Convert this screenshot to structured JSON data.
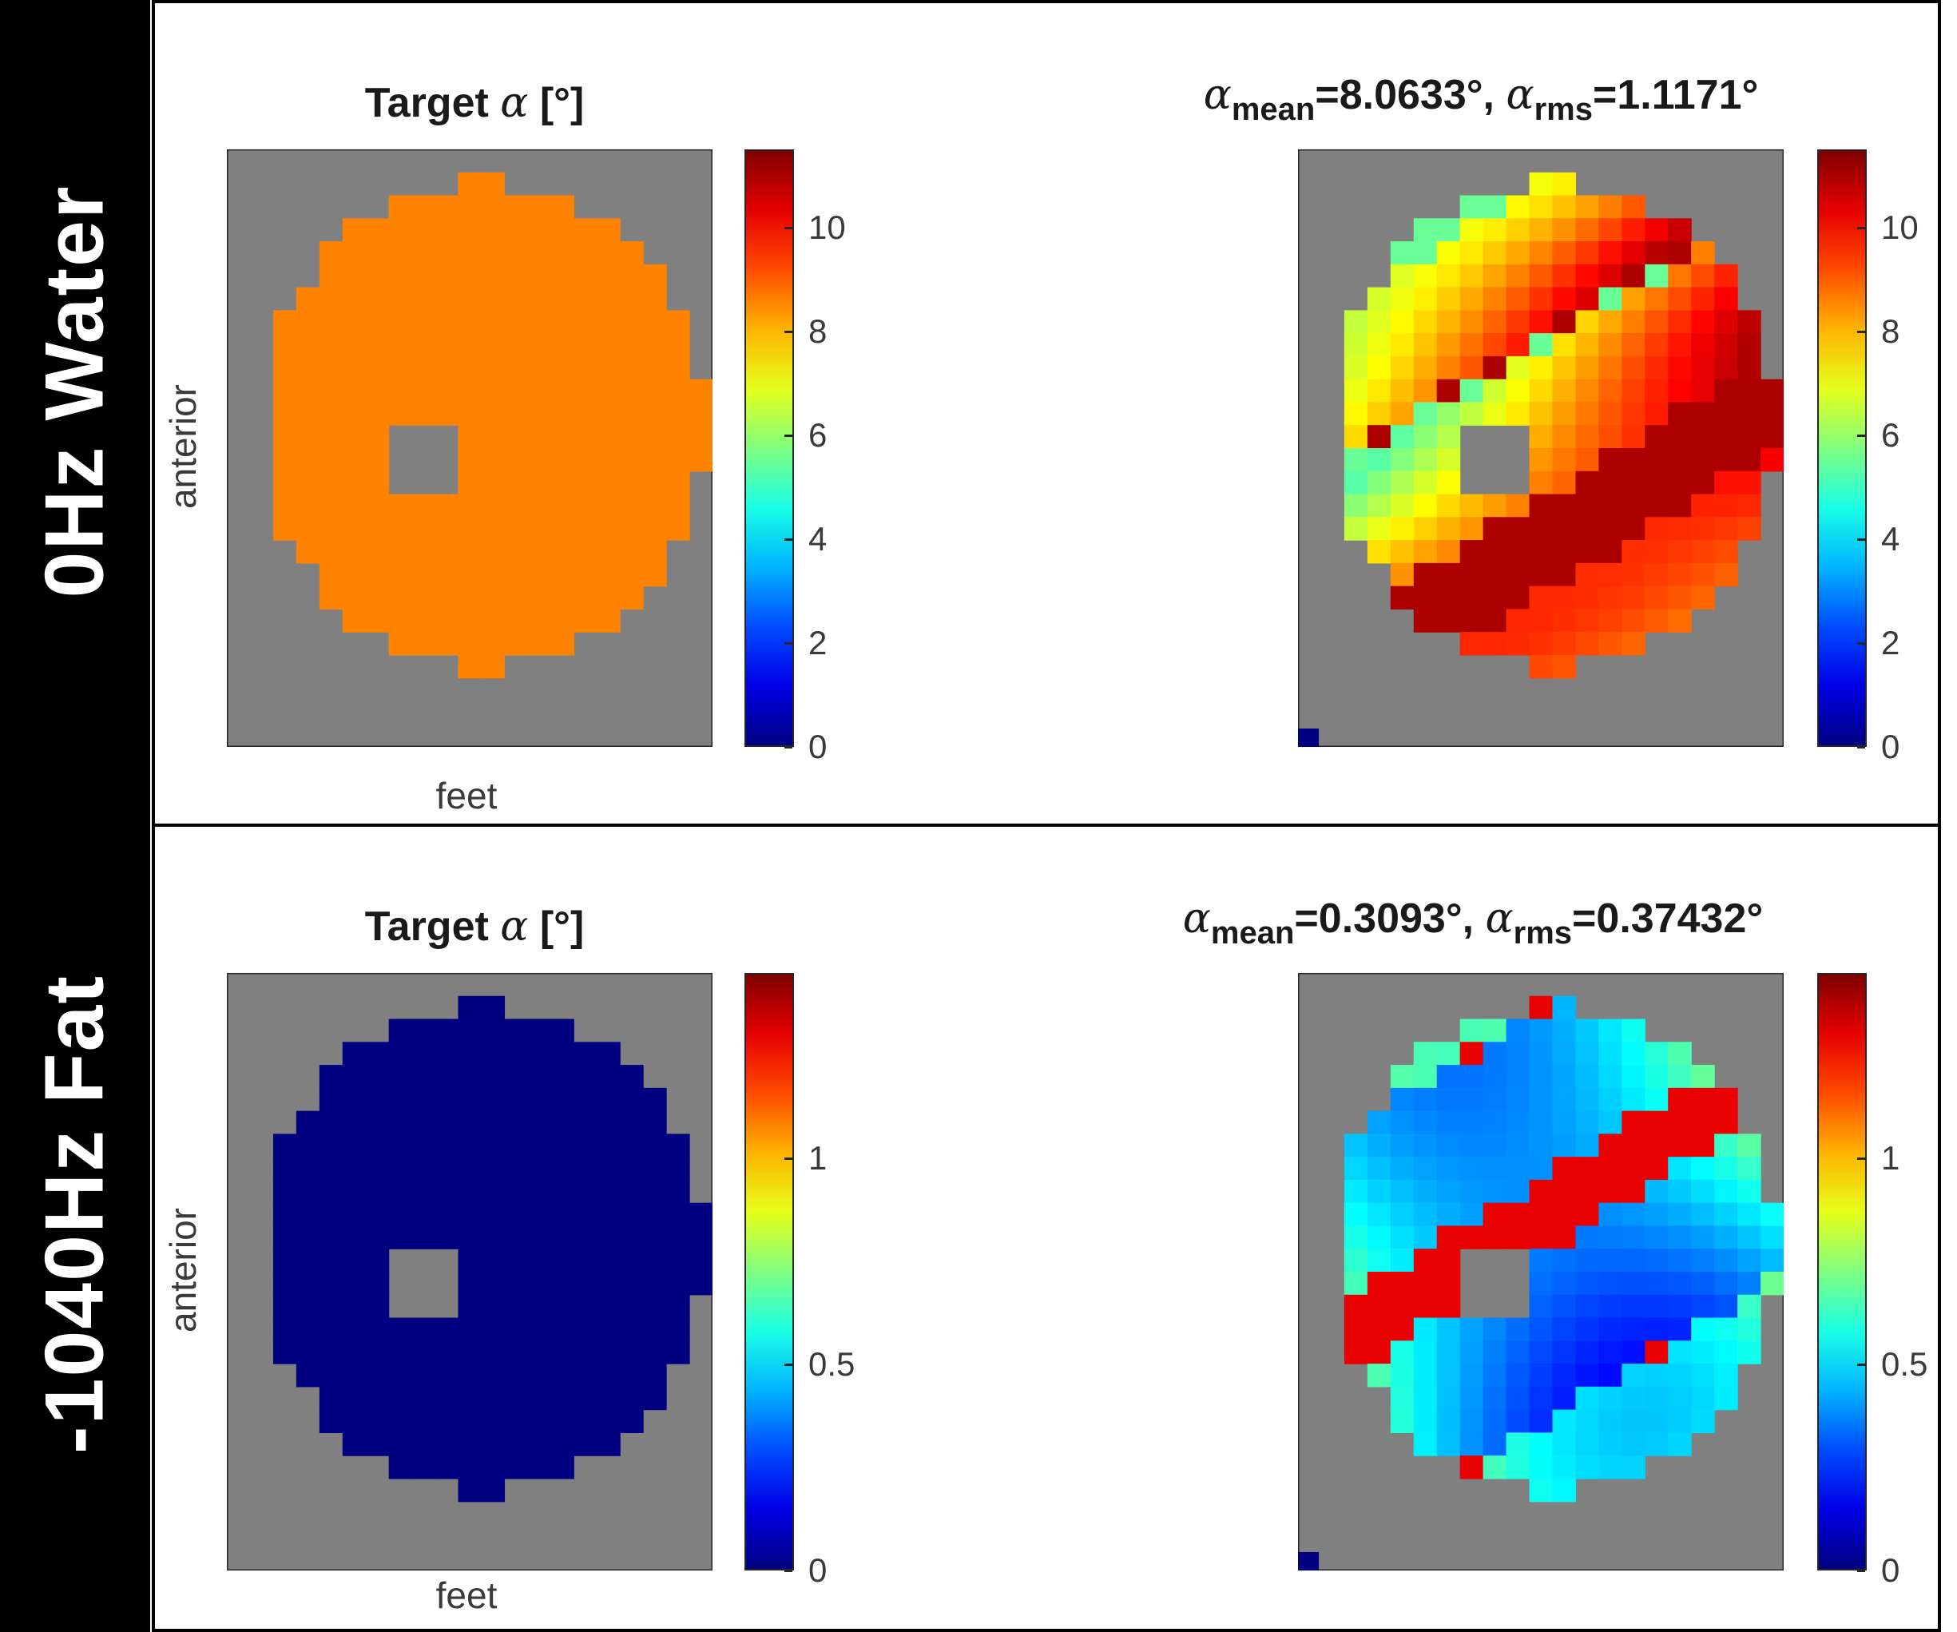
{
  "rows": [
    {
      "label": "0Hz  Water"
    },
    {
      "label": "-1040Hz  Fat"
    }
  ],
  "chart_data": [
    {
      "type": "heatmap",
      "row": "0Hz  Water",
      "panel": "left",
      "title": "Target α [°]",
      "title_prefix": "Target ",
      "title_symbol": "α",
      "title_suffix": " [°]",
      "xlabel": "feet",
      "ylabel": "anterior",
      "colormap": "jet",
      "background_color": "#808080",
      "clim": [
        0,
        11.5
      ],
      "colorbar_ticks": [
        "0",
        "2",
        "4",
        "6",
        "8",
        "10"
      ],
      "colorbar_tick_values": [
        0,
        2,
        4,
        6,
        8,
        10
      ],
      "target_value": 8.6
    },
    {
      "type": "heatmap",
      "row": "0Hz  Water",
      "panel": "right",
      "title_parts": {
        "mean_label": "mean",
        "mean_value": "=8.0633°, ",
        "rms_label": "rms",
        "rms_value": "=1.1171°"
      },
      "colormap": "jet",
      "background_color": "#808080",
      "clim": [
        0,
        11.5
      ],
      "colorbar_ticks": [
        "0",
        "2",
        "4",
        "6",
        "8",
        "10"
      ],
      "colorbar_tick_values": [
        0,
        2,
        4,
        6,
        8,
        10
      ],
      "alpha_mean": 8.0633,
      "alpha_rms": 1.1171
    },
    {
      "type": "heatmap",
      "row": "-1040Hz  Fat",
      "panel": "left",
      "title": "Target α [°]",
      "title_prefix": "Target ",
      "title_symbol": "α",
      "title_suffix": " [°]",
      "xlabel": "feet",
      "ylabel": "anterior",
      "colormap": "jet",
      "background_color": "#808080",
      "clim": [
        0,
        1.45
      ],
      "colorbar_ticks": [
        "0",
        "0.5",
        "1"
      ],
      "colorbar_tick_values": [
        0,
        0.5,
        1
      ],
      "target_value": 0
    },
    {
      "type": "heatmap",
      "row": "-1040Hz  Fat",
      "panel": "right",
      "title_parts": {
        "mean_label": "mean",
        "mean_value": "=0.3093°, ",
        "rms_label": "rms",
        "rms_value": "=0.37432°"
      },
      "colormap": "jet",
      "background_color": "#808080",
      "clim": [
        0,
        1.45
      ],
      "colorbar_ticks": [
        "0",
        "0.5",
        "1"
      ],
      "colorbar_tick_values": [
        0,
        0.5,
        1
      ],
      "alpha_mean": 0.3093,
      "alpha_rms": 0.37432
    }
  ]
}
